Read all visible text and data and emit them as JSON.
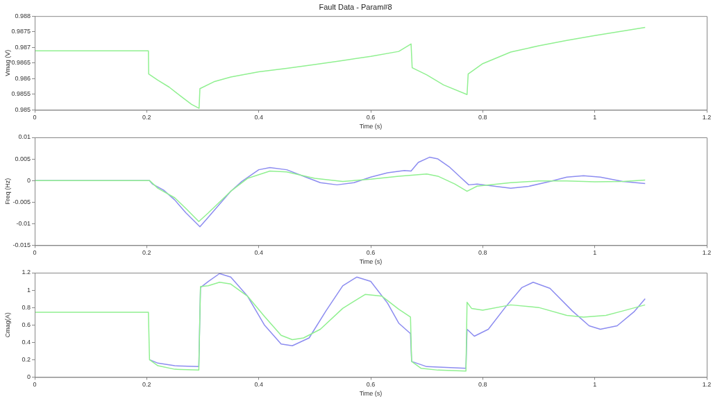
{
  "chart_data": [
    {
      "type": "line",
      "title": "Fault Data - Param#8",
      "xlabel": "Time (s)",
      "ylabel": "Vmag (V)",
      "xlim": [
        0,
        1.2
      ],
      "xticks": [
        0,
        0.2,
        0.4,
        0.6,
        0.8,
        1,
        1.2
      ],
      "ylim": [
        0.985,
        0.988
      ],
      "yticks": [
        0.985,
        0.9855,
        0.986,
        0.9865,
        0.987,
        0.9875,
        0.988
      ],
      "grid": false,
      "legend": false,
      "marker": "none",
      "line_style": "solid",
      "series": [
        {
          "color": "#90f090",
          "x": [
            0,
            0.203,
            0.2035,
            0.22,
            0.24,
            0.26,
            0.28,
            0.2935,
            0.295,
            0.32,
            0.35,
            0.4,
            0.45,
            0.5,
            0.55,
            0.6,
            0.65,
            0.672,
            0.674,
            0.7,
            0.73,
            0.772,
            0.774,
            0.8,
            0.85,
            0.9,
            0.95,
            1.0,
            1.05,
            1.09
          ],
          "values": [
            0.98689,
            0.98689,
            0.98615,
            0.98595,
            0.98573,
            0.98545,
            0.98518,
            0.98505,
            0.98568,
            0.9859,
            0.98605,
            0.98622,
            0.98633,
            0.98645,
            0.98658,
            0.98671,
            0.98687,
            0.98711,
            0.98635,
            0.98612,
            0.9858,
            0.98549,
            0.98615,
            0.98648,
            0.98685,
            0.98705,
            0.98722,
            0.98738,
            0.98752,
            0.98764
          ]
        }
      ]
    },
    {
      "type": "line",
      "xlabel": "Time (s)",
      "ylabel": "Freq (Hz)",
      "xlim": [
        0,
        1.2
      ],
      "xticks": [
        0,
        0.2,
        0.4,
        0.6,
        0.8,
        1,
        1.2
      ],
      "ylim": [
        -0.015,
        0.01
      ],
      "yticks": [
        -0.015,
        -0.01,
        -0.005,
        0,
        0.005,
        0.01
      ],
      "grid": false,
      "legend": false,
      "marker": "none",
      "line_style": "solid",
      "series": [
        {
          "color": "#8c8cf0",
          "x": [
            0,
            0.205,
            0.21,
            0.23,
            0.25,
            0.27,
            0.295,
            0.31,
            0.33,
            0.35,
            0.37,
            0.4,
            0.42,
            0.45,
            0.48,
            0.51,
            0.54,
            0.57,
            0.6,
            0.63,
            0.66,
            0.672,
            0.685,
            0.705,
            0.72,
            0.74,
            0.76,
            0.775,
            0.79,
            0.82,
            0.85,
            0.88,
            0.92,
            0.95,
            0.98,
            1.01,
            1.05,
            1.09
          ],
          "values": [
            0,
            0,
            -0.0008,
            -0.0022,
            -0.0045,
            -0.0075,
            -0.0107,
            -0.0085,
            -0.0055,
            -0.0025,
            -0.0002,
            0.0025,
            0.003,
            0.0025,
            0.001,
            -0.0005,
            -0.001,
            -0.0005,
            0.0008,
            0.0018,
            0.0023,
            0.0022,
            0.0042,
            0.0054,
            0.005,
            0.0032,
            0.0008,
            -0.001,
            -0.0008,
            -0.0013,
            -0.0018,
            -0.0014,
            -0.0002,
            0.0008,
            0.0011,
            0.0008,
            -0.0002,
            -0.0007
          ]
        },
        {
          "color": "#90f090",
          "x": [
            0,
            0.205,
            0.22,
            0.25,
            0.27,
            0.293,
            0.31,
            0.35,
            0.38,
            0.42,
            0.45,
            0.5,
            0.55,
            0.6,
            0.65,
            0.7,
            0.72,
            0.75,
            0.772,
            0.79,
            0.85,
            0.9,
            0.95,
            1.0,
            1.05,
            1.09
          ],
          "values": [
            0,
            0,
            -0.0018,
            -0.004,
            -0.0065,
            -0.0095,
            -0.0075,
            -0.0025,
            0.0005,
            0.0022,
            0.002,
            0.0005,
            -0.0002,
            0.0003,
            0.001,
            0.0015,
            0.001,
            -0.0008,
            -0.0025,
            -0.0013,
            -0.0005,
            -0.0001,
            -0.0001,
            -0.0003,
            -0.0002,
            0.0001
          ]
        }
      ]
    },
    {
      "type": "line",
      "xlabel": "Time (s)",
      "ylabel": "Cmag(A)",
      "xlim": [
        0,
        1.2
      ],
      "xticks": [
        0,
        0.2,
        0.4,
        0.6,
        0.8,
        1,
        1.2
      ],
      "ylim": [
        0,
        1.2
      ],
      "yticks": [
        0,
        0.2,
        0.4,
        0.6,
        0.8,
        1,
        1.2
      ],
      "grid": false,
      "legend": false,
      "marker": "none",
      "line_style": "solid",
      "series": [
        {
          "color": "#8c8cf0",
          "x": [
            0.205,
            0.22,
            0.25,
            0.293,
            0.296,
            0.31,
            0.33,
            0.35,
            0.38,
            0.41,
            0.44,
            0.46,
            0.49,
            0.52,
            0.55,
            0.575,
            0.6,
            0.63,
            0.65,
            0.671,
            0.673,
            0.7,
            0.77,
            0.772,
            0.785,
            0.81,
            0.84,
            0.87,
            0.89,
            0.92,
            0.96,
            0.99,
            1.01,
            1.04,
            1.07,
            1.09
          ],
          "values": [
            0.2,
            0.16,
            0.13,
            0.12,
            1.03,
            1.1,
            1.19,
            1.15,
            0.93,
            0.6,
            0.38,
            0.36,
            0.45,
            0.76,
            1.05,
            1.15,
            1.1,
            0.85,
            0.62,
            0.5,
            0.18,
            0.12,
            0.1,
            0.55,
            0.47,
            0.55,
            0.8,
            1.03,
            1.09,
            1.02,
            0.76,
            0.59,
            0.55,
            0.59,
            0.75,
            0.9
          ]
        },
        {
          "color": "#90f090",
          "x": [
            0,
            0.203,
            0.205,
            0.22,
            0.25,
            0.293,
            0.296,
            0.31,
            0.33,
            0.35,
            0.38,
            0.41,
            0.44,
            0.46,
            0.48,
            0.51,
            0.55,
            0.59,
            0.62,
            0.65,
            0.671,
            0.673,
            0.69,
            0.72,
            0.77,
            0.772,
            0.78,
            0.8,
            0.85,
            0.9,
            0.95,
            0.98,
            1.02,
            1.05,
            1.09
          ],
          "values": [
            0.745,
            0.745,
            0.2,
            0.13,
            0.09,
            0.08,
            1.04,
            1.05,
            1.09,
            1.07,
            0.93,
            0.7,
            0.48,
            0.43,
            0.45,
            0.55,
            0.79,
            0.95,
            0.93,
            0.78,
            0.69,
            0.18,
            0.1,
            0.08,
            0.07,
            0.86,
            0.79,
            0.77,
            0.83,
            0.8,
            0.71,
            0.69,
            0.71,
            0.76,
            0.83
          ]
        }
      ]
    }
  ]
}
